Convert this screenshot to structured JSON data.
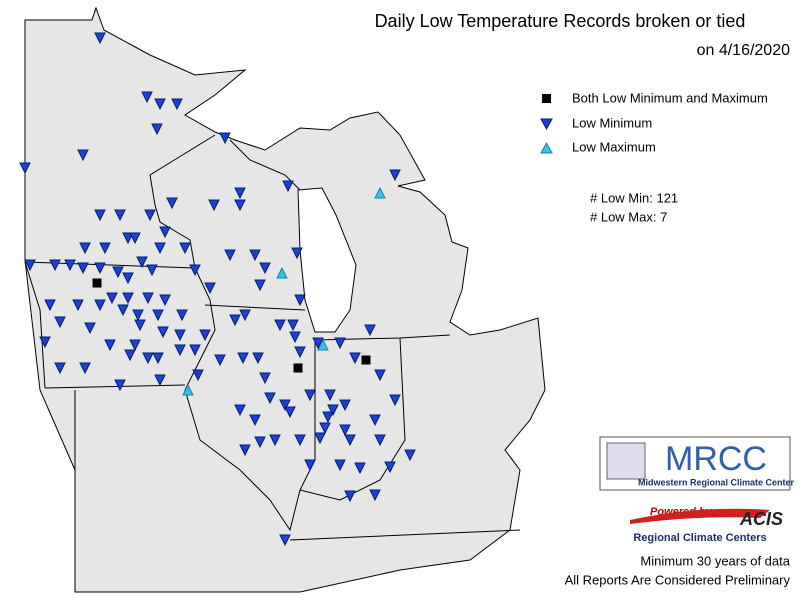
{
  "title": "Daily Low Temperature Records broken or tied",
  "date": "on 4/16/2020",
  "legend": [
    "Both Low Minimum and Maximum",
    "Low Minimum",
    "Low Maximum"
  ],
  "counts": [
    "# Low Min: 121",
    "# Low Max: 7"
  ],
  "logo": {
    "name": "MRCC",
    "full_name": "Midwestern Regional Climate Center"
  },
  "acis": {
    "powered": "Powered by",
    "name": "ACIS",
    "sub": "Regional Climate Centers"
  },
  "notes": [
    "Minimum 30 years of data",
    "All Reports Are Considered Preliminary"
  ]
}
